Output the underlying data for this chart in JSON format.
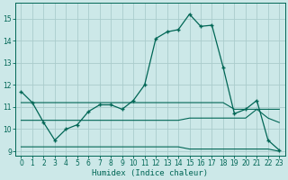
{
  "xlabel": "Humidex (Indice chaleur)",
  "background_color": "#cce8e8",
  "grid_color": "#aacccc",
  "line_color": "#006655",
  "xlim": [
    -0.5,
    23.5
  ],
  "ylim": [
    8.8,
    15.7
  ],
  "yticks": [
    9,
    10,
    11,
    12,
    13,
    14,
    15
  ],
  "xticks": [
    0,
    1,
    2,
    3,
    4,
    5,
    6,
    7,
    8,
    9,
    10,
    11,
    12,
    13,
    14,
    15,
    16,
    17,
    18,
    19,
    20,
    21,
    22,
    23
  ],
  "main_x": [
    0,
    1,
    2,
    3,
    4,
    5,
    6,
    7,
    8,
    9,
    10,
    11,
    12,
    13,
    14,
    15,
    16,
    17,
    18,
    19,
    20,
    21,
    22,
    23
  ],
  "main_y": [
    11.7,
    11.2,
    10.3,
    9.5,
    10.0,
    10.2,
    10.8,
    11.1,
    11.1,
    10.9,
    11.3,
    12.0,
    14.1,
    14.4,
    14.5,
    15.2,
    14.65,
    14.7,
    12.8,
    10.7,
    10.9,
    11.3,
    9.5,
    9.05
  ],
  "flat1_x": [
    0,
    1,
    2,
    3,
    4,
    5,
    6,
    7,
    8,
    9,
    10,
    11,
    12,
    13,
    14,
    15,
    16,
    17,
    18,
    19,
    20,
    21,
    22,
    23
  ],
  "flat1_y": [
    11.2,
    11.2,
    11.2,
    11.2,
    11.2,
    11.2,
    11.2,
    11.2,
    11.2,
    11.2,
    11.2,
    11.2,
    11.2,
    11.2,
    11.2,
    11.2,
    11.2,
    11.2,
    11.2,
    10.9,
    10.9,
    10.9,
    10.9,
    10.9
  ],
  "flat2_x": [
    0,
    1,
    2,
    3,
    4,
    5,
    6,
    7,
    8,
    9,
    10,
    11,
    12,
    13,
    14,
    15,
    16,
    17,
    18,
    19,
    20,
    21,
    22,
    23
  ],
  "flat2_y": [
    10.4,
    10.4,
    10.4,
    10.4,
    10.4,
    10.4,
    10.4,
    10.4,
    10.4,
    10.4,
    10.4,
    10.4,
    10.4,
    10.4,
    10.4,
    10.5,
    10.5,
    10.5,
    10.5,
    10.5,
    10.5,
    10.9,
    10.5,
    10.3
  ],
  "flat3_x": [
    0,
    1,
    2,
    3,
    4,
    5,
    6,
    7,
    8,
    9,
    10,
    11,
    12,
    13,
    14,
    15,
    16,
    17,
    18,
    19,
    20,
    21,
    22,
    23
  ],
  "flat3_y": [
    9.2,
    9.2,
    9.2,
    9.2,
    9.2,
    9.2,
    9.2,
    9.2,
    9.2,
    9.2,
    9.2,
    9.2,
    9.2,
    9.2,
    9.2,
    9.1,
    9.1,
    9.1,
    9.1,
    9.1,
    9.1,
    9.1,
    9.1,
    9.0
  ]
}
